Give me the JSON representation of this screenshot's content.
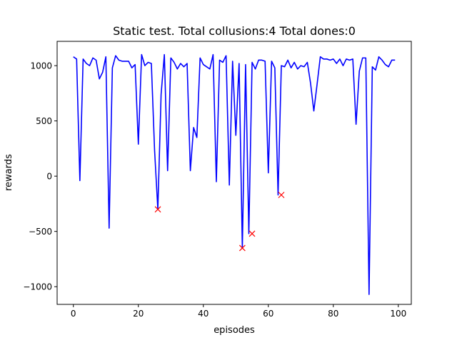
{
  "chart_data": {
    "type": "line",
    "title": "Static test. Total collusions:4 Total dones:0",
    "xlabel": "episodes",
    "ylabel": "rewards",
    "xlim": [
      -5,
      104
    ],
    "ylim": [
      -1160,
      1220
    ],
    "xticks": [
      0,
      20,
      40,
      60,
      80,
      100
    ],
    "xtick_labels": [
      "0",
      "20",
      "40",
      "60",
      "80",
      "100"
    ],
    "yticks": [
      -1000,
      -500,
      0,
      500,
      1000
    ],
    "ytick_labels": [
      "−1000",
      "−500",
      "0",
      "500",
      "1000"
    ],
    "grid": false,
    "legend": "none",
    "series": [
      {
        "style": "line",
        "color": "#0000ff",
        "x": [
          0,
          1,
          2,
          3,
          4,
          5,
          6,
          7,
          8,
          9,
          10,
          11,
          12,
          13,
          14,
          15,
          16,
          17,
          18,
          19,
          20,
          21,
          22,
          23,
          24,
          25,
          26,
          27,
          28,
          29,
          30,
          31,
          32,
          33,
          34,
          35,
          36,
          37,
          38,
          39,
          40,
          41,
          42,
          43,
          44,
          45,
          46,
          47,
          48,
          49,
          50,
          51,
          52,
          53,
          54,
          55,
          56,
          57,
          58,
          59,
          60,
          61,
          62,
          63,
          64,
          65,
          66,
          67,
          68,
          69,
          70,
          71,
          72,
          73,
          74,
          75,
          76,
          77,
          78,
          79,
          80,
          81,
          82,
          83,
          84,
          85,
          86,
          87,
          88,
          89,
          90,
          91,
          92,
          93,
          94,
          95,
          96,
          97,
          98,
          99
        ],
        "y": [
          1080,
          1060,
          -40,
          1060,
          1020,
          1000,
          1070,
          1050,
          880,
          940,
          1080,
          -470,
          980,
          1090,
          1050,
          1040,
          1040,
          1040,
          980,
          1010,
          290,
          1100,
          1000,
          1030,
          1020,
          230,
          -300,
          740,
          1100,
          50,
          1070,
          1030,
          970,
          1020,
          990,
          1020,
          50,
          440,
          350,
          1070,
          1010,
          990,
          970,
          1100,
          -50,
          1050,
          1030,
          1090,
          -80,
          1040,
          370,
          1020,
          -650,
          1010,
          -520,
          1030,
          970,
          1050,
          1050,
          1040,
          30,
          1040,
          980,
          -170,
          1000,
          990,
          1050,
          980,
          1030,
          970,
          1000,
          990,
          1030,
          840,
          590,
          830,
          1080,
          1060,
          1060,
          1050,
          1060,
          1020,
          1060,
          1000,
          1060,
          1050,
          1060,
          470,
          950,
          1070,
          1070,
          -1070,
          990,
          960,
          1080,
          1050,
          1010,
          990,
          1050,
          1050
        ]
      },
      {
        "style": "markers",
        "marker": "x",
        "color": "#ff0000",
        "x": [
          26,
          52,
          55,
          64
        ],
        "y": [
          -300,
          -650,
          -520,
          -170
        ]
      }
    ]
  }
}
